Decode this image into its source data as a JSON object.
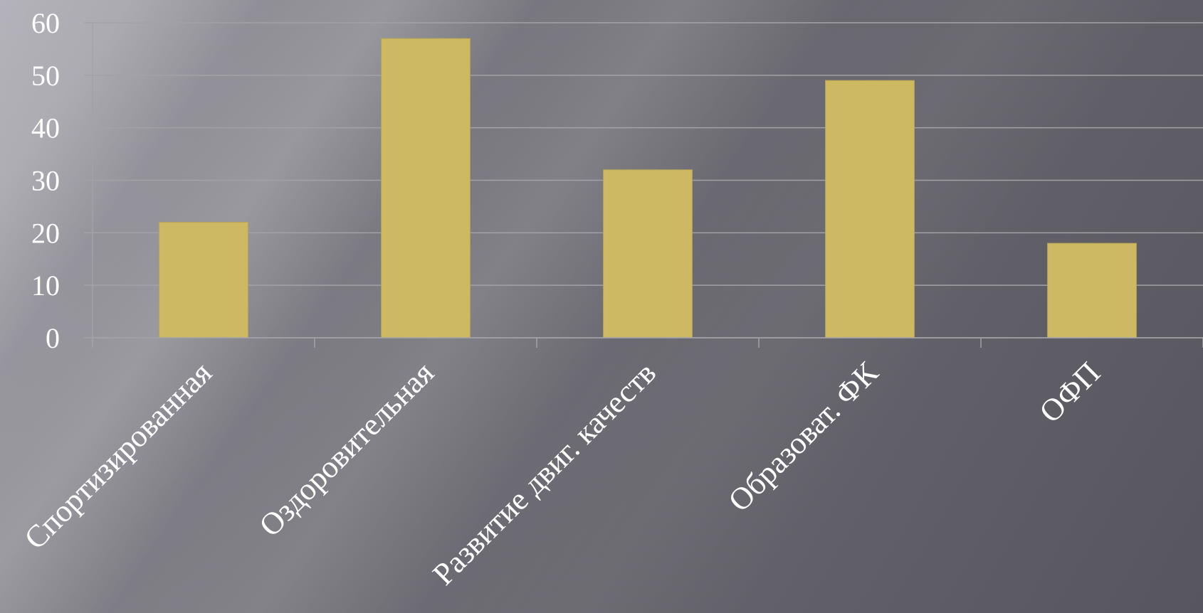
{
  "chart_data": {
    "type": "bar",
    "categories": [
      "Спортизированная",
      "Оздоровительная",
      "Развитие двиг. качеств",
      "Образоват. ФК",
      "ОФП"
    ],
    "values": [
      22,
      57,
      32,
      49,
      18
    ],
    "title": "",
    "xlabel": "",
    "ylabel": "",
    "ylim": [
      0,
      60
    ],
    "yticks": [
      0,
      10,
      20,
      30,
      40,
      50,
      60
    ],
    "grid": true,
    "legend": "none",
    "bar_color": "#cdb863",
    "gridline_color": "#a3a2a8"
  }
}
